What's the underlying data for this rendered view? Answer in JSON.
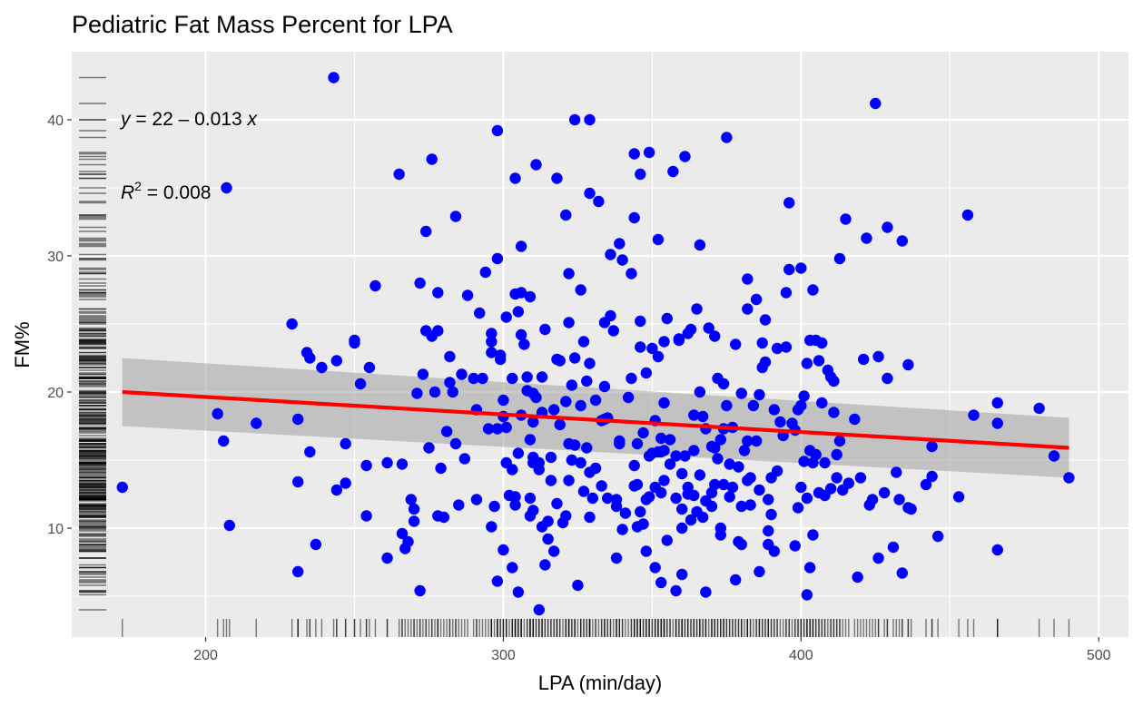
{
  "chart_data": {
    "type": "scatter",
    "title": "Pediatric Fat Mass Percent for LPA",
    "xlabel": "LPA (min/day)",
    "ylabel": "FM%",
    "xlim": [
      155,
      510
    ],
    "ylim": [
      2,
      45
    ],
    "xticks": [
      "200",
      "300",
      "400",
      "500"
    ],
    "yticks": [
      "10",
      "20",
      "30",
      "40"
    ],
    "grid": true,
    "legend": "none",
    "colors": {
      "points": "#0000ff",
      "fit_line": "#ff0000",
      "confidence_band": "#999999",
      "panel": "#ebebeb",
      "grid": "#ffffff",
      "rug": "#000000"
    },
    "annotations": {
      "equation": {
        "prefix": "y",
        "text": " = 22 – 0.013 ",
        "suffix": "x"
      },
      "r2": {
        "symbol": "R",
        "power": "2",
        "text": " = 0.008"
      }
    },
    "fit": {
      "x": [
        172,
        490
      ],
      "y": [
        20.0,
        15.9
      ],
      "ci_lower": [
        17.5,
        13.7
      ],
      "ci_upper": [
        22.5,
        18.1
      ]
    },
    "points": [
      [
        172,
        13.0
      ],
      [
        204,
        18.4
      ],
      [
        206,
        16.4
      ],
      [
        207,
        35.0
      ],
      [
        208,
        10.2
      ],
      [
        217,
        17.7
      ],
      [
        229,
        25.0
      ],
      [
        231,
        18.0
      ],
      [
        231,
        13.4
      ],
      [
        231,
        6.8
      ],
      [
        234,
        22.9
      ],
      [
        235,
        22.5
      ],
      [
        235,
        15.6
      ],
      [
        237,
        8.8
      ],
      [
        239,
        21.8
      ],
      [
        243,
        43.1
      ],
      [
        244,
        12.8
      ],
      [
        244,
        22.3
      ],
      [
        247,
        16.2
      ],
      [
        247,
        13.3
      ],
      [
        250,
        23.6
      ],
      [
        250,
        23.8
      ],
      [
        252,
        20.6
      ],
      [
        254,
        14.6
      ],
      [
        254,
        10.9
      ],
      [
        255,
        21.8
      ],
      [
        257,
        27.8
      ],
      [
        261,
        14.8
      ],
      [
        261,
        7.8
      ],
      [
        265,
        36.0
      ],
      [
        266,
        14.7
      ],
      [
        266,
        9.6
      ],
      [
        267,
        8.5
      ],
      [
        268,
        9.0
      ],
      [
        269,
        12.1
      ],
      [
        270,
        10.5
      ],
      [
        270,
        11.4
      ],
      [
        271,
        19.9
      ],
      [
        272,
        5.4
      ],
      [
        272,
        28.0
      ],
      [
        273,
        21.3
      ],
      [
        274,
        24.5
      ],
      [
        274,
        31.8
      ],
      [
        275,
        15.9
      ],
      [
        276,
        37.1
      ],
      [
        276,
        24.1
      ],
      [
        277,
        20.0
      ],
      [
        278,
        24.5
      ],
      [
        278,
        27.3
      ],
      [
        278,
        10.9
      ],
      [
        279,
        14.4
      ],
      [
        280,
        10.8
      ],
      [
        281,
        17.1
      ],
      [
        282,
        20.7
      ],
      [
        282,
        22.6
      ],
      [
        283,
        20.0
      ],
      [
        284,
        16.2
      ],
      [
        284,
        32.9
      ],
      [
        285,
        11.7
      ],
      [
        286,
        21.3
      ],
      [
        287,
        15.1
      ],
      [
        288,
        27.1
      ],
      [
        290,
        21.0
      ],
      [
        291,
        18.7
      ],
      [
        291,
        12.1
      ],
      [
        292,
        25.8
      ],
      [
        293,
        21.0
      ],
      [
        294,
        28.8
      ],
      [
        295,
        17.3
      ],
      [
        296,
        22.9
      ],
      [
        296,
        24.3
      ],
      [
        296,
        23.7
      ],
      [
        296,
        10.1
      ],
      [
        297,
        11.6
      ],
      [
        298,
        17.3
      ],
      [
        298,
        39.2
      ],
      [
        298,
        6.1
      ],
      [
        298,
        29.8
      ],
      [
        299,
        22.7
      ],
      [
        299,
        22.4
      ],
      [
        300,
        19.4
      ],
      [
        300,
        18.2
      ],
      [
        300,
        8.4
      ],
      [
        301,
        17.4
      ],
      [
        301,
        14.8
      ],
      [
        301,
        25.5
      ],
      [
        302,
        12.4
      ],
      [
        303,
        14.3
      ],
      [
        303,
        7.1
      ],
      [
        303,
        21.0
      ],
      [
        304,
        35.7
      ],
      [
        304,
        27.2
      ],
      [
        304,
        12.3
      ],
      [
        304,
        11.7
      ],
      [
        305,
        15.5
      ],
      [
        305,
        5.3
      ],
      [
        305,
        25.9
      ],
      [
        306,
        27.3
      ],
      [
        306,
        18.3
      ],
      [
        306,
        30.7
      ],
      [
        306,
        24.2
      ],
      [
        307,
        23.5
      ],
      [
        308,
        21.1
      ],
      [
        308,
        20.1
      ],
      [
        309,
        16.5
      ],
      [
        309,
        10.9
      ],
      [
        309,
        12.2
      ],
      [
        309,
        27.0
      ],
      [
        310,
        17.8
      ],
      [
        310,
        14.8
      ],
      [
        310,
        15.2
      ],
      [
        310,
        19.9
      ],
      [
        310,
        11.3
      ],
      [
        311,
        36.7
      ],
      [
        311,
        19.6
      ],
      [
        312,
        4.0
      ],
      [
        312,
        14.3
      ],
      [
        312,
        14.8
      ],
      [
        313,
        21.1
      ],
      [
        313,
        18.5
      ],
      [
        313,
        10.1
      ],
      [
        314,
        24.6
      ],
      [
        314,
        7.3
      ],
      [
        315,
        10.5
      ],
      [
        315,
        9.2
      ],
      [
        316,
        15.2
      ],
      [
        316,
        13.5
      ],
      [
        317,
        18.7
      ],
      [
        317,
        8.3
      ],
      [
        318,
        22.4
      ],
      [
        318,
        35.7
      ],
      [
        318,
        11.8
      ],
      [
        319,
        17.6
      ],
      [
        319,
        22.3
      ],
      [
        320,
        10.4
      ],
      [
        321,
        19.3
      ],
      [
        321,
        33.0
      ],
      [
        321,
        10.9
      ],
      [
        322,
        13.5
      ],
      [
        322,
        25.1
      ],
      [
        322,
        28.7
      ],
      [
        322,
        16.2
      ],
      [
        323,
        15.0
      ],
      [
        323,
        20.5
      ],
      [
        324,
        22.5
      ],
      [
        324,
        16.1
      ],
      [
        324,
        40.0
      ],
      [
        325,
        5.8
      ],
      [
        326,
        14.8
      ],
      [
        326,
        19.0
      ],
      [
        326,
        27.5
      ],
      [
        327,
        23.7
      ],
      [
        327,
        12.7
      ],
      [
        328,
        15.9
      ],
      [
        328,
        20.8
      ],
      [
        329,
        34.6
      ],
      [
        329,
        40.0
      ],
      [
        329,
        10.8
      ],
      [
        329,
        14.1
      ],
      [
        329,
        22.1
      ],
      [
        330,
        12.2
      ],
      [
        331,
        14.4
      ],
      [
        331,
        19.4
      ],
      [
        332,
        34.0
      ],
      [
        333,
        17.9
      ],
      [
        333,
        13.1
      ],
      [
        334,
        18.0
      ],
      [
        334,
        20.4
      ],
      [
        334,
        25.1
      ],
      [
        335,
        18.1
      ],
      [
        335,
        12.2
      ],
      [
        336,
        30.1
      ],
      [
        336,
        25.6
      ],
      [
        337,
        24.5
      ],
      [
        338,
        11.6
      ],
      [
        338,
        7.8
      ],
      [
        338,
        12.1
      ],
      [
        339,
        16.4
      ],
      [
        339,
        30.9
      ],
      [
        339,
        16.2
      ],
      [
        340,
        9.9
      ],
      [
        340,
        29.7
      ],
      [
        341,
        11.1
      ],
      [
        342,
        19.6
      ],
      [
        343,
        21.0
      ],
      [
        343,
        28.7
      ],
      [
        344,
        32.8
      ],
      [
        344,
        37.5
      ],
      [
        344,
        14.6
      ],
      [
        344,
        13.1
      ],
      [
        345,
        16.2
      ],
      [
        345,
        10.1
      ],
      [
        345,
        13.2
      ],
      [
        346,
        25.2
      ],
      [
        346,
        11.2
      ],
      [
        346,
        36.0
      ],
      [
        346,
        23.3
      ],
      [
        347,
        10.3
      ],
      [
        347,
        17.0
      ],
      [
        348,
        12.1
      ],
      [
        348,
        8.3
      ],
      [
        348,
        21.4
      ],
      [
        349,
        15.3
      ],
      [
        349,
        37.6
      ],
      [
        349,
        12.3
      ],
      [
        350,
        23.2
      ],
      [
        350,
        15.5
      ],
      [
        351,
        13.0
      ],
      [
        351,
        17.9
      ],
      [
        351,
        7.1
      ],
      [
        352,
        31.2
      ],
      [
        352,
        15.6
      ],
      [
        352,
        22.6
      ],
      [
        353,
        15.6
      ],
      [
        353,
        12.6
      ],
      [
        353,
        6.0
      ],
      [
        353,
        16.6
      ],
      [
        354,
        19.2
      ],
      [
        354,
        23.7
      ],
      [
        354,
        13.5
      ],
      [
        354,
        15.7
      ],
      [
        355,
        9.1
      ],
      [
        355,
        25.4
      ],
      [
        356,
        14.7
      ],
      [
        356,
        16.5
      ],
      [
        357,
        36.2
      ],
      [
        358,
        15.3
      ],
      [
        358,
        5.4
      ],
      [
        358,
        12.2
      ],
      [
        359,
        23.8
      ],
      [
        359,
        23.9
      ],
      [
        360,
        10.0
      ],
      [
        360,
        11.4
      ],
      [
        360,
        14.0
      ],
      [
        360,
        6.6
      ],
      [
        361,
        37.3
      ],
      [
        361,
        15.3
      ],
      [
        362,
        12.5
      ],
      [
        362,
        24.3
      ],
      [
        362,
        13.0
      ],
      [
        363,
        10.6
      ],
      [
        363,
        24.6
      ],
      [
        364,
        18.3
      ],
      [
        364,
        12.4
      ],
      [
        364,
        15.7
      ],
      [
        365,
        11.2
      ],
      [
        365,
        26.1
      ],
      [
        366,
        20.0
      ],
      [
        366,
        13.9
      ],
      [
        366,
        30.8
      ],
      [
        367,
        18.2
      ],
      [
        367,
        10.8
      ],
      [
        368,
        17.3
      ],
      [
        368,
        5.3
      ],
      [
        368,
        12.0
      ],
      [
        369,
        24.7
      ],
      [
        370,
        11.6
      ],
      [
        370,
        12.6
      ],
      [
        370,
        16.0
      ],
      [
        371,
        15.9
      ],
      [
        371,
        13.2
      ],
      [
        371,
        24.1
      ],
      [
        372,
        21.0
      ],
      [
        372,
        15.1
      ],
      [
        373,
        16.5
      ],
      [
        373,
        10.0
      ],
      [
        373,
        9.5
      ],
      [
        374,
        17.3
      ],
      [
        374,
        13.2
      ],
      [
        374,
        20.6
      ],
      [
        375,
        38.7
      ],
      [
        375,
        19.0
      ],
      [
        376,
        12.3
      ],
      [
        376,
        14.7
      ],
      [
        377,
        17.4
      ],
      [
        377,
        13.0
      ],
      [
        378,
        6.2
      ],
      [
        378,
        23.5
      ],
      [
        379,
        14.5
      ],
      [
        379,
        9.0
      ],
      [
        380,
        11.6
      ],
      [
        380,
        19.9
      ],
      [
        380,
        8.8
      ],
      [
        381,
        15.7
      ],
      [
        382,
        16.4
      ],
      [
        382,
        13.5
      ],
      [
        382,
        26.1
      ],
      [
        382,
        28.3
      ],
      [
        383,
        11.7
      ],
      [
        383,
        13.7
      ],
      [
        384,
        19.0
      ],
      [
        385,
        16.4
      ],
      [
        385,
        26.8
      ],
      [
        386,
        19.8
      ],
      [
        386,
        6.8
      ],
      [
        386,
        12.8
      ],
      [
        387,
        23.6
      ],
      [
        387,
        21.8
      ],
      [
        388,
        22.2
      ],
      [
        388,
        25.3
      ],
      [
        389,
        12.1
      ],
      [
        389,
        9.8
      ],
      [
        389,
        8.8
      ],
      [
        390,
        13.7
      ],
      [
        390,
        11.0
      ],
      [
        391,
        18.7
      ],
      [
        391,
        8.3
      ],
      [
        392,
        14.2
      ],
      [
        392,
        23.2
      ],
      [
        393,
        17.8
      ],
      [
        394,
        16.8
      ],
      [
        395,
        27.3
      ],
      [
        395,
        23.3
      ],
      [
        396,
        33.9
      ],
      [
        396,
        29.0
      ],
      [
        397,
        17.7
      ],
      [
        398,
        8.7
      ],
      [
        398,
        17.2
      ],
      [
        399,
        18.7
      ],
      [
        399,
        11.5
      ],
      [
        400,
        19.0
      ],
      [
        400,
        13.0
      ],
      [
        400,
        29.1
      ],
      [
        401,
        19.7
      ],
      [
        401,
        14.9
      ],
      [
        402,
        5.1
      ],
      [
        402,
        12.2
      ],
      [
        402,
        22.1
      ],
      [
        403,
        15.7
      ],
      [
        403,
        23.8
      ],
      [
        403,
        7.1
      ],
      [
        404,
        14.8
      ],
      [
        404,
        27.5
      ],
      [
        404,
        9.5
      ],
      [
        405,
        15.4
      ],
      [
        405,
        23.8
      ],
      [
        406,
        12.6
      ],
      [
        406,
        22.3
      ],
      [
        407,
        23.6
      ],
      [
        407,
        19.2
      ],
      [
        408,
        14.8
      ],
      [
        408,
        12.4
      ],
      [
        409,
        21.6
      ],
      [
        410,
        21.1
      ],
      [
        410,
        12.9
      ],
      [
        411,
        18.5
      ],
      [
        411,
        20.8
      ],
      [
        412,
        13.7
      ],
      [
        412,
        15.4
      ],
      [
        413,
        16.4
      ],
      [
        413,
        29.8
      ],
      [
        414,
        12.8
      ],
      [
        415,
        32.7
      ],
      [
        416,
        13.3
      ],
      [
        418,
        18.0
      ],
      [
        419,
        6.4
      ],
      [
        420,
        13.7
      ],
      [
        421,
        22.4
      ],
      [
        422,
        31.3
      ],
      [
        423,
        11.7
      ],
      [
        424,
        12.1
      ],
      [
        425,
        41.2
      ],
      [
        426,
        22.6
      ],
      [
        426,
        7.8
      ],
      [
        428,
        12.6
      ],
      [
        429,
        32.1
      ],
      [
        429,
        21.0
      ],
      [
        431,
        8.6
      ],
      [
        432,
        14.1
      ],
      [
        433,
        12.1
      ],
      [
        434,
        31.1
      ],
      [
        434,
        6.7
      ],
      [
        436,
        22.0
      ],
      [
        436,
        11.5
      ],
      [
        437,
        11.4
      ],
      [
        442,
        13.2
      ],
      [
        444,
        13.8
      ],
      [
        444,
        16.0
      ],
      [
        446,
        9.4
      ],
      [
        453,
        12.3
      ],
      [
        456,
        33.0
      ],
      [
        458,
        18.3
      ],
      [
        466,
        19.2
      ],
      [
        466,
        17.7
      ],
      [
        466,
        8.4
      ],
      [
        480,
        18.8
      ],
      [
        485,
        15.3
      ],
      [
        490,
        13.7
      ]
    ]
  }
}
